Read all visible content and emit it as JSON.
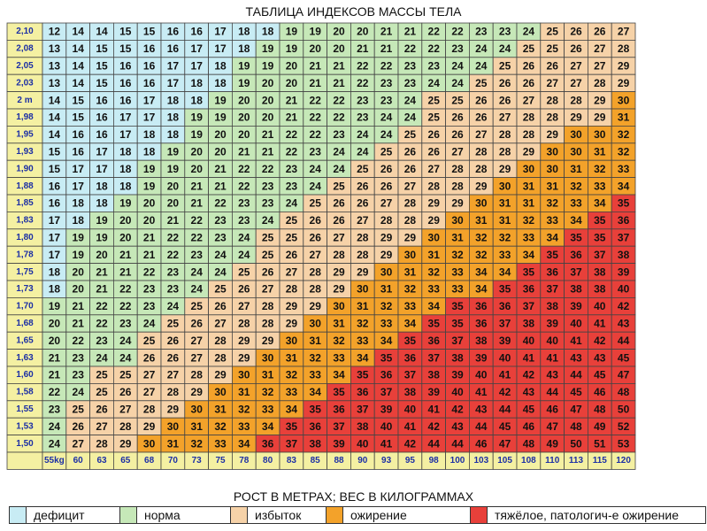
{
  "title": "ТАБЛИЦА ИНДЕКСОВ МАССЫ ТЕЛА",
  "subtitle": "РОСТ В МЕТРАХ; ВЕС В КИЛОГРАММАХ",
  "colors": {
    "label_bg": "#f4f0a2",
    "label_text": "#1c2fa5",
    "cell_text": "#111111",
    "border": "#444444",
    "categories": {
      "deficit": "#c8ecf4",
      "norm": "#c6e8b8",
      "excess": "#f6d2a8",
      "obesity": "#f3a22a",
      "severe": "#e8403a"
    }
  },
  "legend": [
    {
      "key": "deficit",
      "label": "дефицит"
    },
    {
      "key": "norm",
      "label": "норма"
    },
    {
      "key": "excess",
      "label": "избыток"
    },
    {
      "key": "obesity",
      "label": "ожирение"
    },
    {
      "key": "severe",
      "label": "тяжёлое, патологич-е ожирение"
    }
  ],
  "chart_data": {
    "type": "heatmap",
    "title": "ТАБЛИЦА ИНДЕКСОВ МАССЫ ТЕЛА",
    "xlabel": "РОСТ В МЕТРАХ; ВЕС В КИЛОГРАММАХ",
    "row_labels": [
      "2,10",
      "2,08",
      "2,05",
      "2,03",
      "2 m",
      "1,98",
      "1,95",
      "1,93",
      "1,90",
      "1,88",
      "1,85",
      "1,83",
      "1,80",
      "1,78",
      "1,75",
      "1,73",
      "1,70",
      "1,68",
      "1,65",
      "1,63",
      "1,60",
      "1,58",
      "1,55",
      "1,53",
      "1,50"
    ],
    "col_labels": [
      "55kg",
      "60",
      "63",
      "65",
      "68",
      "70",
      "73",
      "75",
      "78",
      "80",
      "83",
      "85",
      "88",
      "90",
      "93",
      "95",
      "98",
      "100",
      "103",
      "105",
      "108",
      "110",
      "113",
      "115",
      "120"
    ],
    "categories_thresholds": {
      "deficit_max": 18,
      "norm_max": 24,
      "excess_max": 29,
      "obesity_max": 34
    },
    "values": [
      [
        12,
        14,
        14,
        15,
        15,
        16,
        16,
        17,
        18,
        18,
        19,
        19,
        20,
        20,
        21,
        21,
        22,
        22,
        23,
        23,
        24,
        25,
        26,
        26,
        27
      ],
      [
        13,
        14,
        15,
        15,
        16,
        16,
        17,
        17,
        18,
        19,
        19,
        20,
        20,
        21,
        21,
        22,
        22,
        23,
        24,
        24,
        25,
        25,
        26,
        27,
        28
      ],
      [
        13,
        14,
        15,
        16,
        16,
        17,
        17,
        18,
        19,
        19,
        20,
        21,
        21,
        22,
        22,
        23,
        23,
        24,
        24,
        25,
        26,
        26,
        27,
        27,
        29
      ],
      [
        13,
        14,
        15,
        16,
        16,
        17,
        18,
        18,
        19,
        20,
        20,
        21,
        21,
        22,
        23,
        23,
        24,
        24,
        25,
        26,
        26,
        27,
        27,
        28,
        29
      ],
      [
        14,
        15,
        16,
        16,
        17,
        18,
        18,
        19,
        20,
        20,
        21,
        22,
        22,
        23,
        23,
        24,
        25,
        25,
        26,
        26,
        27,
        28,
        28,
        29,
        30
      ],
      [
        14,
        15,
        16,
        17,
        17,
        18,
        19,
        19,
        20,
        20,
        21,
        22,
        22,
        23,
        24,
        24,
        25,
        26,
        26,
        27,
        28,
        28,
        29,
        29,
        31
      ],
      [
        14,
        16,
        16,
        17,
        18,
        18,
        19,
        20,
        20,
        21,
        22,
        22,
        23,
        24,
        24,
        25,
        26,
        26,
        27,
        28,
        28,
        29,
        30,
        30,
        32
      ],
      [
        15,
        16,
        17,
        18,
        18,
        19,
        20,
        20,
        21,
        21,
        22,
        23,
        24,
        24,
        25,
        26,
        26,
        27,
        28,
        28,
        29,
        30,
        30,
        31,
        32
      ],
      [
        15,
        17,
        17,
        18,
        19,
        19,
        20,
        21,
        22,
        22,
        23,
        24,
        24,
        25,
        26,
        26,
        27,
        28,
        28,
        29,
        30,
        30,
        31,
        32,
        33
      ],
      [
        16,
        17,
        18,
        18,
        19,
        20,
        21,
        21,
        22,
        23,
        23,
        24,
        25,
        26,
        26,
        27,
        28,
        28,
        29,
        30,
        31,
        31,
        32,
        33,
        34
      ],
      [
        16,
        18,
        18,
        19,
        20,
        20,
        21,
        22,
        23,
        23,
        24,
        25,
        26,
        26,
        27,
        28,
        29,
        29,
        30,
        31,
        31,
        32,
        33,
        34,
        35
      ],
      [
        17,
        18,
        19,
        20,
        20,
        21,
        22,
        23,
        23,
        24,
        25,
        26,
        26,
        27,
        28,
        28,
        29,
        30,
        31,
        31,
        32,
        33,
        34,
        35,
        36
      ],
      [
        17,
        19,
        19,
        20,
        21,
        22,
        22,
        23,
        24,
        25,
        25,
        26,
        27,
        28,
        29,
        29,
        30,
        31,
        32,
        32,
        33,
        34,
        35,
        35,
        37
      ],
      [
        17,
        19,
        20,
        21,
        21,
        22,
        23,
        24,
        24,
        25,
        26,
        27,
        28,
        28,
        29,
        30,
        31,
        32,
        32,
        33,
        34,
        35,
        36,
        37,
        38
      ],
      [
        18,
        20,
        21,
        21,
        22,
        23,
        24,
        24,
        25,
        26,
        27,
        28,
        29,
        29,
        30,
        31,
        32,
        33,
        34,
        34,
        35,
        36,
        37,
        38,
        39
      ],
      [
        18,
        20,
        21,
        22,
        23,
        23,
        24,
        25,
        26,
        27,
        28,
        28,
        29,
        30,
        31,
        32,
        33,
        33,
        34,
        35,
        36,
        37,
        38,
        38,
        40
      ],
      [
        19,
        21,
        22,
        22,
        23,
        24,
        25,
        26,
        27,
        28,
        29,
        29,
        30,
        31,
        32,
        33,
        34,
        35,
        36,
        36,
        37,
        38,
        39,
        40,
        42
      ],
      [
        20,
        21,
        22,
        23,
        24,
        25,
        26,
        27,
        28,
        28,
        29,
        30,
        31,
        32,
        33,
        34,
        35,
        35,
        36,
        37,
        38,
        39,
        40,
        41,
        43
      ],
      [
        20,
        22,
        23,
        24,
        25,
        26,
        27,
        28,
        29,
        29,
        30,
        31,
        32,
        33,
        34,
        35,
        36,
        37,
        38,
        39,
        40,
        40,
        41,
        42,
        44
      ],
      [
        21,
        23,
        24,
        24,
        26,
        26,
        27,
        28,
        29,
        30,
        31,
        32,
        33,
        34,
        35,
        36,
        37,
        38,
        39,
        40,
        41,
        41,
        43,
        43,
        45
      ],
      [
        21,
        23,
        25,
        25,
        27,
        27,
        28,
        29,
        30,
        31,
        32,
        33,
        34,
        35,
        36,
        37,
        38,
        39,
        40,
        41,
        42,
        43,
        44,
        45,
        47
      ],
      [
        22,
        24,
        25,
        26,
        27,
        28,
        29,
        30,
        31,
        32,
        33,
        34,
        35,
        36,
        37,
        38,
        39,
        40,
        41,
        42,
        43,
        44,
        45,
        46,
        48
      ],
      [
        23,
        25,
        26,
        27,
        28,
        29,
        30,
        31,
        32,
        33,
        34,
        35,
        36,
        37,
        39,
        40,
        41,
        42,
        43,
        44,
        45,
        46,
        47,
        48,
        50
      ],
      [
        24,
        26,
        27,
        28,
        29,
        30,
        31,
        32,
        33,
        34,
        35,
        36,
        37,
        38,
        40,
        41,
        42,
        43,
        44,
        45,
        46,
        47,
        48,
        49,
        52
      ],
      [
        24,
        27,
        28,
        29,
        30,
        31,
        32,
        33,
        34,
        36,
        37,
        38,
        39,
        40,
        41,
        42,
        44,
        44,
        46,
        47,
        48,
        49,
        50,
        51,
        53
      ]
    ]
  }
}
